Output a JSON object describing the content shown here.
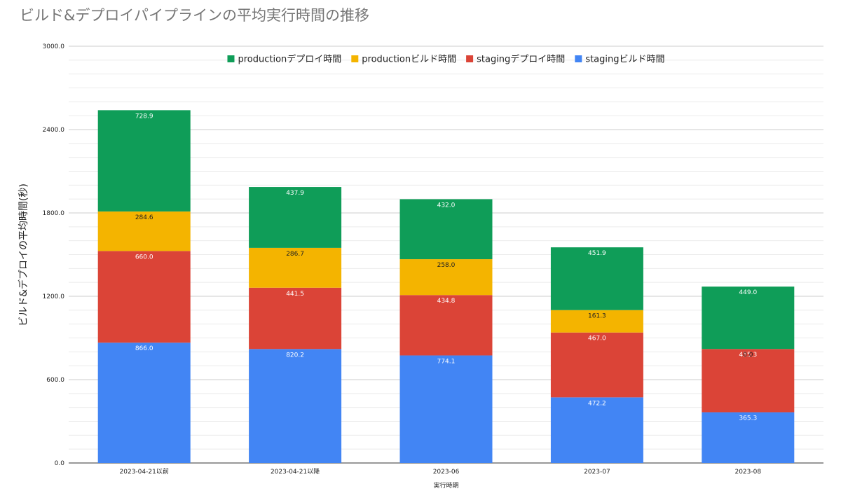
{
  "chart_data": {
    "type": "bar",
    "stacked": true,
    "title": "ビルド&デプロイパイプラインの平均実行時間の推移",
    "xlabel": "実行時期",
    "ylabel": "ビルド&デプロイの平均時間(秒)",
    "ylim": [
      0,
      3000
    ],
    "yticks": [
      "0.0",
      "600.0",
      "1200.0",
      "1800.0",
      "2400.0",
      "3000.0"
    ],
    "grid": true,
    "legend_position": "top",
    "categories": [
      "2023-04-21以前",
      "2023-04-21以降",
      "2023-06",
      "2023-07",
      "2023-08"
    ],
    "series": [
      {
        "name": "stagingビルド時間",
        "color": "#4285f4",
        "label_color": "#ffffff",
        "values": [
          866.0,
          820.2,
          774.1,
          472.2,
          365.3
        ],
        "labels": [
          "866.0",
          "820.2",
          "774.1",
          "472.2",
          "365.3"
        ]
      },
      {
        "name": "stagingデプロイ時間",
        "color": "#db4437",
        "label_color": "#ffffff",
        "values": [
          660.0,
          441.5,
          434.8,
          467.0,
          455.3
        ],
        "labels": [
          "660.0",
          "441.5",
          "434.8",
          "467.0",
          "455.3"
        ]
      },
      {
        "name": "productionビルド時間",
        "color": "#f4b400",
        "label_color": "#222222",
        "values": [
          284.6,
          286.7,
          258.0,
          161.3,
          0.0
        ],
        "labels": [
          "284.6",
          "286.7",
          "258.0",
          "161.3",
          "0.0"
        ]
      },
      {
        "name": "productionデプロイ時間",
        "color": "#0f9d58",
        "label_color": "#ffffff",
        "values": [
          728.9,
          437.9,
          432.0,
          451.9,
          449.0
        ],
        "labels": [
          "728.9",
          "437.9",
          "432.0",
          "451.9",
          "449.0"
        ]
      }
    ],
    "legend_order": [
      3,
      2,
      1,
      0
    ]
  }
}
